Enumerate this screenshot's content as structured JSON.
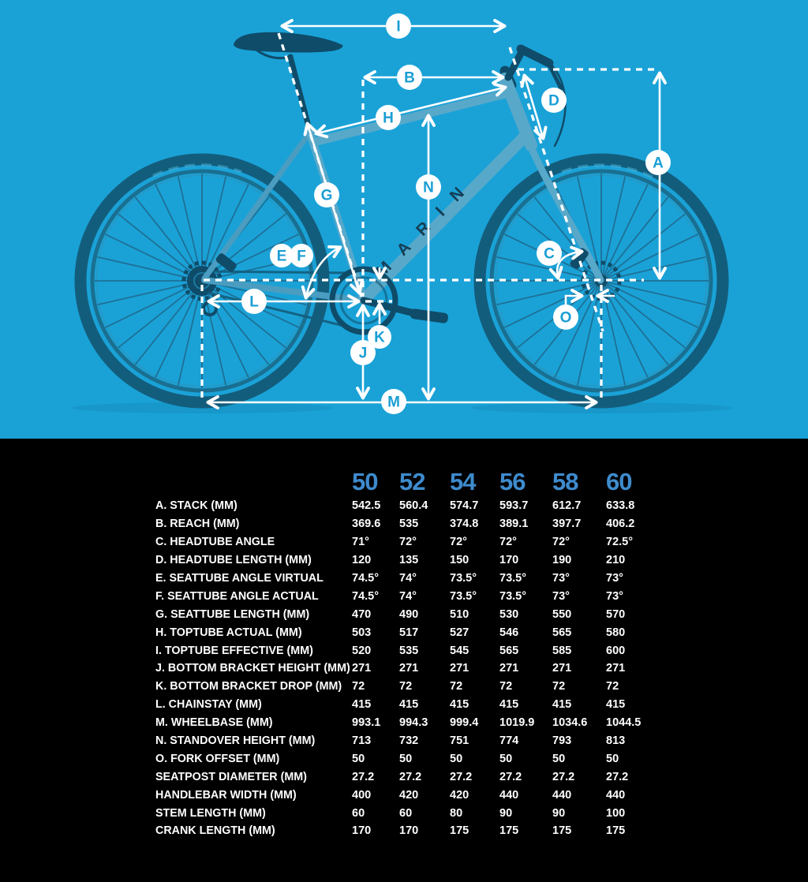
{
  "colors": {
    "background": "#1aa2d7",
    "table_background": "#000000",
    "size_header": "#3e8bcd",
    "text": "#ffffff",
    "badge_letter": "#1a9ed3",
    "bike_frame": "#58a8c9",
    "bike_frame_rear": "#4a9dc0",
    "bike_dark": "#0f4c69",
    "tire": "#135d7c",
    "rim": "#1a6f90",
    "spoke": "#1e7095",
    "frame_logo": "#163e55"
  },
  "diagram": {
    "frame_brand": "MARIN",
    "badges": [
      {
        "letter": "A"
      },
      {
        "letter": "B"
      },
      {
        "letter": "C"
      },
      {
        "letter": "D"
      },
      {
        "letter": "E"
      },
      {
        "letter": "F"
      },
      {
        "letter": "G"
      },
      {
        "letter": "H"
      },
      {
        "letter": "I"
      },
      {
        "letter": "J"
      },
      {
        "letter": "K"
      },
      {
        "letter": "L"
      },
      {
        "letter": "M"
      },
      {
        "letter": "N"
      },
      {
        "letter": "O"
      }
    ]
  },
  "table": {
    "sizes": [
      "50",
      "52",
      "54",
      "56",
      "58",
      "60"
    ],
    "rows": [
      {
        "label": "A. STACK (MM)",
        "values": [
          "542.5",
          "560.4",
          "574.7",
          "593.7",
          "612.7",
          "633.8"
        ]
      },
      {
        "label": "B. REACH (MM)",
        "values": [
          "369.6",
          "535",
          "374.8",
          "389.1",
          "397.7",
          "406.2"
        ]
      },
      {
        "label": "C. HEADTUBE ANGLE",
        "values": [
          "71°",
          "72°",
          "72°",
          "72°",
          "72°",
          "72.5°"
        ]
      },
      {
        "label": "D. HEADTUBE LENGTH (MM)",
        "values": [
          "120",
          "135",
          "150",
          "170",
          "190",
          "210"
        ]
      },
      {
        "label": "E. SEATTUBE ANGLE VIRTUAL",
        "values": [
          "74.5°",
          "74°",
          "73.5°",
          "73.5°",
          "73°",
          "73°"
        ]
      },
      {
        "label": "F. SEATTUBE ANGLE ACTUAL",
        "values": [
          "74.5°",
          "74°",
          "73.5°",
          "73.5°",
          "73°",
          "73°"
        ]
      },
      {
        "label": "G. SEATTUBE LENGTH (MM)",
        "values": [
          "470",
          "490",
          "510",
          "530",
          "550",
          "570"
        ]
      },
      {
        "label": "H. TOPTUBE ACTUAL (MM)",
        "values": [
          "503",
          "517",
          "527",
          "546",
          "565",
          "580"
        ]
      },
      {
        "label": "I. TOPTUBE EFFECTIVE (MM)",
        "values": [
          "520",
          "535",
          "545",
          "565",
          "585",
          "600"
        ]
      },
      {
        "label": "J. BOTTOM BRACKET HEIGHT (MM)",
        "values": [
          "271",
          "271",
          "271",
          "271",
          "271",
          "271"
        ]
      },
      {
        "label": "K. BOTTOM BRACKET DROP (MM)",
        "values": [
          "72",
          "72",
          "72",
          "72",
          "72",
          "72"
        ]
      },
      {
        "label": "L. CHAINSTAY (MM)",
        "values": [
          "415",
          "415",
          "415",
          "415",
          "415",
          "415"
        ]
      },
      {
        "label": "M. WHEELBASE (MM)",
        "values": [
          "993.1",
          "994.3",
          "999.4",
          "1019.9",
          "1034.6",
          "1044.5"
        ]
      },
      {
        "label": "N. STANDOVER HEIGHT (MM)",
        "values": [
          "713",
          "732",
          "751",
          "774",
          "793",
          "813"
        ]
      },
      {
        "label": "O. FORK OFFSET (MM)",
        "values": [
          "50",
          "50",
          "50",
          "50",
          "50",
          "50"
        ]
      },
      {
        "label": "SEATPOST DIAMETER (MM)",
        "values": [
          "27.2",
          "27.2",
          "27.2",
          "27.2",
          "27.2",
          "27.2"
        ]
      },
      {
        "label": "HANDLEBAR WIDTH (MM)",
        "values": [
          "400",
          "420",
          "420",
          "440",
          "440",
          "440"
        ]
      },
      {
        "label": "STEM LENGTH (MM)",
        "values": [
          "60",
          "60",
          "80",
          "90",
          "90",
          "100"
        ]
      },
      {
        "label": "CRANK LENGTH (MM)",
        "values": [
          "170",
          "170",
          "175",
          "175",
          "175",
          "175"
        ]
      }
    ]
  }
}
